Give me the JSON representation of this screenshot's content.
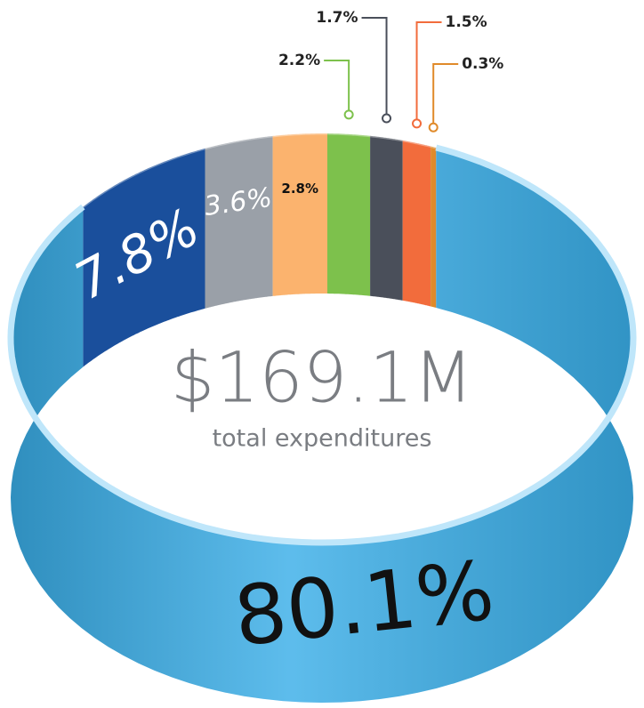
{
  "chart_data": {
    "type": "pie",
    "values": [
      80.1,
      7.8,
      3.6,
      2.8,
      2.2,
      1.7,
      1.5,
      0.3
    ],
    "value_labels": [
      "80.1%",
      "7.8%",
      "3.6%",
      "2.8%",
      "2.2%",
      "1.7%",
      "1.5%",
      "0.3%"
    ],
    "colors": [
      "#3aaee8",
      "#1a4f9c",
      "#9aa0a8",
      "#fbb36e",
      "#7dc14c",
      "#4a4f5a",
      "#f26c3c",
      "#e08a2a"
    ],
    "annotations": [
      "$169.1M",
      "total expenditures"
    ]
  }
}
